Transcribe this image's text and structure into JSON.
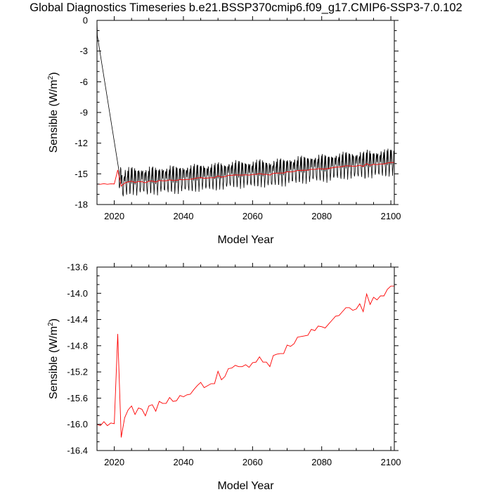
{
  "title": "Global Diagnostics Timeseries b.e21.BSSP370cmip6.f09_g17.CMIP6-SSP3-7.0.102",
  "chart_data": [
    {
      "type": "line",
      "xlabel": "Model Year",
      "ylabel": "Sensible (W/m",
      "ylabel_sup": "2",
      "ylabel_close": ")",
      "xlim": [
        2015,
        2101
      ],
      "ylim": [
        -18,
        0
      ],
      "xticks": [
        "2020",
        "2040",
        "2060",
        "2080",
        "2100"
      ],
      "yticks": [
        "0",
        "-3",
        "-6",
        "-9",
        "-12",
        "-15",
        "-18"
      ],
      "grid": false,
      "series": [
        {
          "style": "monthly",
          "color": "#000000",
          "start_year": 2015,
          "monthly_offsets": [
            0.0,
            0.9,
            1.2,
            0.8,
            0.1,
            -0.6,
            -1.1,
            -0.9,
            -0.3,
            0.4,
            0.9,
            1.1
          ],
          "spin_up": [
            [
              2015.0,
              0.0
            ],
            [
              2015.1,
              -1.5
            ],
            [
              2021.4,
              -14.8
            ]
          ]
        },
        {
          "style": "annual",
          "color": "#ff0000",
          "x": [
            2015,
            2016,
            2017,
            2018,
            2019,
            2020,
            2021,
            2022,
            2023,
            2024,
            2025,
            2026,
            2027,
            2028,
            2029,
            2030,
            2031,
            2032,
            2033,
            2034,
            2035,
            2036,
            2037,
            2038,
            2039,
            2040,
            2041,
            2042,
            2043,
            2044,
            2045,
            2046,
            2047,
            2048,
            2049,
            2050,
            2051,
            2052,
            2053,
            2054,
            2055,
            2056,
            2057,
            2058,
            2059,
            2060,
            2061,
            2062,
            2063,
            2064,
            2065,
            2066,
            2067,
            2068,
            2069,
            2070,
            2071,
            2072,
            2073,
            2074,
            2075,
            2076,
            2077,
            2078,
            2079,
            2080,
            2081,
            2082,
            2083,
            2084,
            2085,
            2086,
            2087,
            2088,
            2089,
            2090,
            2091,
            2092,
            2093,
            2094,
            2095,
            2096,
            2097,
            2098,
            2099,
            2100,
            2101
          ],
          "y": [
            -16.0,
            -16.02,
            -15.96,
            -16.02,
            -15.98,
            -15.99,
            -14.62,
            -16.2,
            -15.9,
            -15.78,
            -15.72,
            -15.85,
            -15.75,
            -15.77,
            -15.87,
            -15.72,
            -15.7,
            -15.8,
            -15.65,
            -15.68,
            -15.68,
            -15.59,
            -15.65,
            -15.64,
            -15.56,
            -15.58,
            -15.55,
            -15.54,
            -15.47,
            -15.41,
            -15.36,
            -15.44,
            -15.41,
            -15.38,
            -15.38,
            -15.19,
            -15.32,
            -15.27,
            -15.15,
            -15.14,
            -15.1,
            -15.12,
            -15.12,
            -15.09,
            -15.13,
            -15.06,
            -15.05,
            -14.97,
            -15.05,
            -15.05,
            -15.12,
            -14.95,
            -14.93,
            -14.92,
            -14.92,
            -14.79,
            -14.81,
            -14.77,
            -14.67,
            -14.66,
            -14.65,
            -14.64,
            -14.55,
            -14.57,
            -14.5,
            -14.51,
            -14.53,
            -14.47,
            -14.41,
            -14.35,
            -14.34,
            -14.28,
            -14.22,
            -14.22,
            -14.26,
            -14.24,
            -14.16,
            -14.28,
            -14.01,
            -14.17,
            -14.06,
            -14.1,
            -14.04,
            -14.04,
            -13.94,
            -13.89,
            -13.89
          ]
        }
      ]
    },
    {
      "type": "line",
      "xlabel": "Model Year",
      "ylabel": "Sensible (W/m",
      "ylabel_sup": "2",
      "ylabel_close": ")",
      "xlim": [
        2015,
        2101
      ],
      "ylim": [
        -16.4,
        -13.6
      ],
      "xticks": [
        "2020",
        "2040",
        "2060",
        "2080",
        "2100"
      ],
      "yticks": [
        "-13.6",
        "-14.0",
        "-14.4",
        "-14.8",
        "-15.2",
        "-15.6",
        "-16.0",
        "-16.4"
      ],
      "grid": false,
      "series": [
        {
          "style": "annual",
          "color": "#ff0000",
          "x": [
            2015,
            2016,
            2017,
            2018,
            2019,
            2020,
            2021,
            2022,
            2023,
            2024,
            2025,
            2026,
            2027,
            2028,
            2029,
            2030,
            2031,
            2032,
            2033,
            2034,
            2035,
            2036,
            2037,
            2038,
            2039,
            2040,
            2041,
            2042,
            2043,
            2044,
            2045,
            2046,
            2047,
            2048,
            2049,
            2050,
            2051,
            2052,
            2053,
            2054,
            2055,
            2056,
            2057,
            2058,
            2059,
            2060,
            2061,
            2062,
            2063,
            2064,
            2065,
            2066,
            2067,
            2068,
            2069,
            2070,
            2071,
            2072,
            2073,
            2074,
            2075,
            2076,
            2077,
            2078,
            2079,
            2080,
            2081,
            2082,
            2083,
            2084,
            2085,
            2086,
            2087,
            2088,
            2089,
            2090,
            2091,
            2092,
            2093,
            2094,
            2095,
            2096,
            2097,
            2098,
            2099,
            2100,
            2101
          ],
          "y": [
            -16.0,
            -16.02,
            -15.96,
            -16.02,
            -15.98,
            -15.99,
            -14.62,
            -16.2,
            -15.9,
            -15.78,
            -15.72,
            -15.85,
            -15.75,
            -15.77,
            -15.87,
            -15.72,
            -15.7,
            -15.8,
            -15.65,
            -15.68,
            -15.68,
            -15.59,
            -15.65,
            -15.64,
            -15.56,
            -15.58,
            -15.55,
            -15.54,
            -15.47,
            -15.41,
            -15.36,
            -15.44,
            -15.41,
            -15.38,
            -15.38,
            -15.19,
            -15.32,
            -15.27,
            -15.15,
            -15.14,
            -15.1,
            -15.12,
            -15.12,
            -15.09,
            -15.13,
            -15.06,
            -15.05,
            -14.97,
            -15.05,
            -15.05,
            -15.12,
            -14.95,
            -14.93,
            -14.92,
            -14.92,
            -14.79,
            -14.81,
            -14.77,
            -14.67,
            -14.66,
            -14.65,
            -14.64,
            -14.55,
            -14.57,
            -14.5,
            -14.51,
            -14.53,
            -14.47,
            -14.41,
            -14.35,
            -14.34,
            -14.28,
            -14.22,
            -14.22,
            -14.26,
            -14.24,
            -14.16,
            -14.28,
            -14.01,
            -14.17,
            -14.06,
            -14.1,
            -14.04,
            -14.04,
            -13.94,
            -13.89,
            -13.89
          ]
        }
      ]
    }
  ]
}
